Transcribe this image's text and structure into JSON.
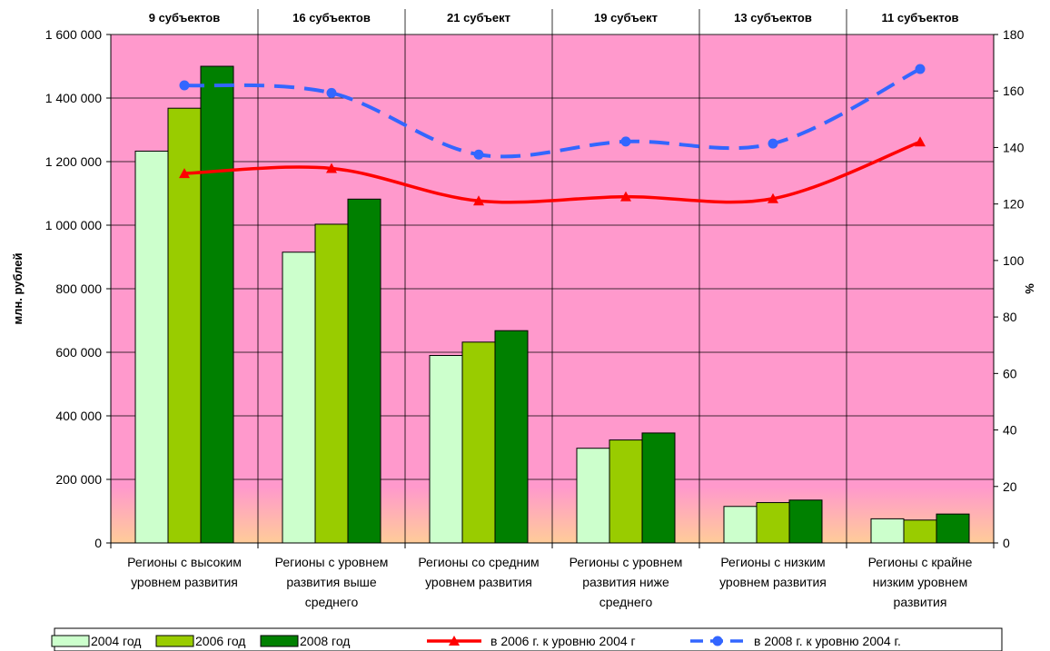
{
  "chart_data": {
    "type": "bar",
    "title": "",
    "categories": [
      [
        "Регионы с высоким",
        "уровнем развития"
      ],
      [
        "Регионы с уровнем",
        "развития выше",
        "среднего"
      ],
      [
        "Регионы со средним",
        "уровнем развития"
      ],
      [
        "Регионы с уровнем",
        "развития ниже",
        "среднего"
      ],
      [
        "Регионы с низким",
        "уровнем развития"
      ],
      [
        "Регионы с крайне",
        "низким уровнем",
        "развития"
      ]
    ],
    "group_counts": [
      "9 субъектов",
      "16 субъектов",
      "21 субъект",
      "19 субъект",
      "13 субъектов",
      "11 субъектов"
    ],
    "ylabel": "млн. рублей",
    "y2label": "%",
    "ylim": [
      0,
      1600000
    ],
    "y2lim": [
      0,
      180
    ],
    "yticks": [
      0,
      200000,
      400000,
      600000,
      800000,
      1000000,
      1200000,
      1400000,
      1600000
    ],
    "yticks_text": [
      "0",
      "200 000",
      "400 000",
      "600 000",
      "800 000",
      "1 000 000",
      "1 200 000",
      "1 400 000",
      "1 600 000"
    ],
    "y2ticks": [
      0,
      20,
      40,
      60,
      80,
      100,
      120,
      140,
      160,
      180
    ],
    "y2ticks_text": [
      "0",
      "20",
      "40",
      "60",
      "80",
      "100",
      "120",
      "140",
      "160",
      "180"
    ],
    "grid": true,
    "legend_position": "bottom",
    "bar_series": [
      {
        "name": "2004 год",
        "color": "#ccffcc",
        "values": [
          1233000,
          915000,
          590000,
          298000,
          115000,
          76000
        ]
      },
      {
        "name": "2006 год",
        "color": "#99cc00",
        "values": [
          1368000,
          1003000,
          632000,
          324000,
          127000,
          72000
        ]
      },
      {
        "name": "2008 год",
        "color": "#008000",
        "values": [
          1500000,
          1082000,
          668000,
          346000,
          135000,
          91000
        ]
      }
    ],
    "line_series": [
      {
        "name": "в 2006 г. к уровню 2004 г",
        "color": "#ff0000",
        "axis": "right",
        "marker": "triangle",
        "dash": false,
        "values": [
          130.8,
          132.6,
          121.1,
          122.6,
          121.9,
          142.0
        ]
      },
      {
        "name": "в 2008 г. к уровню 2004 г.",
        "color": "#3366ff",
        "axis": "right",
        "marker": "circle",
        "dash": true,
        "values": [
          162.0,
          159.3,
          137.5,
          142.1,
          141.4,
          167.8
        ]
      }
    ],
    "colors": {
      "plot_background": "#ff99cc",
      "plot_background_bottom": "#ffcc99"
    }
  }
}
